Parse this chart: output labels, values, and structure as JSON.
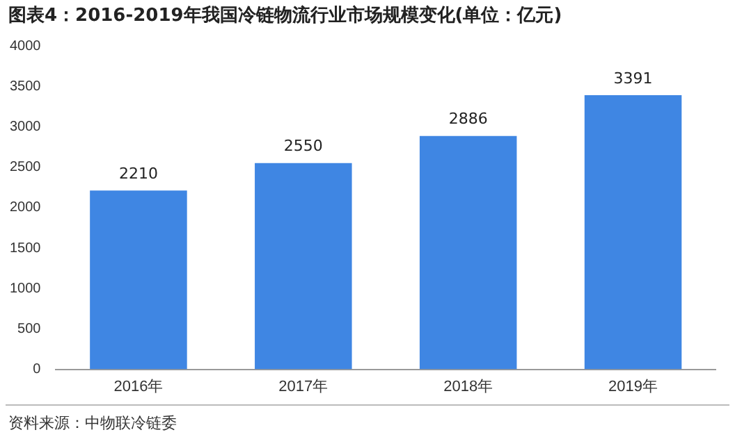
{
  "chart_data": {
    "type": "bar",
    "title": "图表4：2016-2019年我国冷链物流行业市场规模变化(单位：亿元)",
    "categories": [
      "2016年",
      "2017年",
      "2018年",
      "2019年"
    ],
    "values": [
      2210,
      2550,
      2886,
      3391
    ],
    "color": "#3f86e3",
    "ylim": [
      0,
      4000
    ],
    "yticks": [
      0,
      500,
      1000,
      1500,
      2000,
      2500,
      3000,
      3500,
      4000
    ],
    "grid": false,
    "data_labels": true,
    "annotations": [
      "资料来源：中物联冷链委"
    ]
  }
}
